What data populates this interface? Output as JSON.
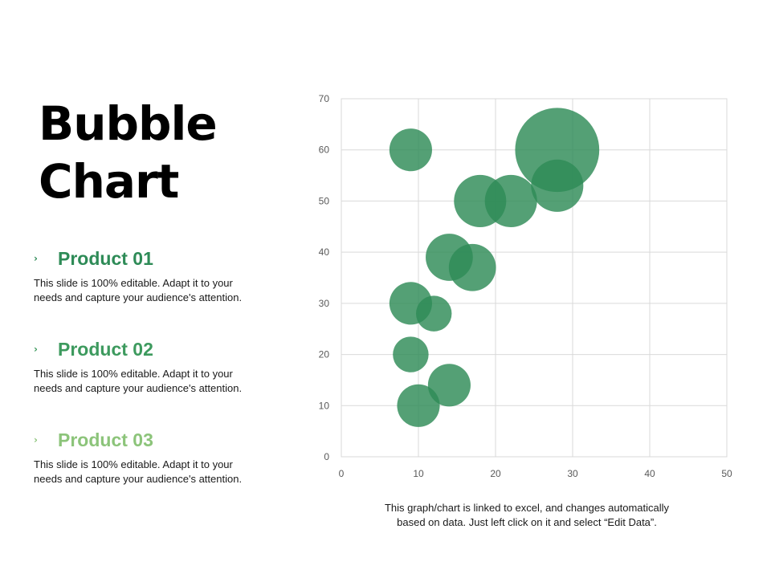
{
  "slide": {
    "title_line1": "Bubble",
    "title_line2": "Chart",
    "footnote_line1": "This graph/chart is linked to excel, and changes automatically",
    "footnote_line2": "based on data. Just left click on it and select “Edit Data”."
  },
  "products": [
    {
      "chevron": "›",
      "name": "Product 01",
      "color": "#2e8b57",
      "desc_line1": "This slide is 100% editable. Adapt it to your",
      "desc_line2": "needs and capture your audience's attention."
    },
    {
      "chevron": "›",
      "name": "Product 02",
      "color": "#3d9a5e",
      "desc_line1": "This slide is 100% editable. Adapt it to your",
      "desc_line2": "needs and capture your audience's attention."
    },
    {
      "chevron": "›",
      "name": "Product 03",
      "color": "#8cc47a",
      "desc_line1": "This slide is 100% editable. Adapt it to your",
      "desc_line2": "needs and capture your audience's attention."
    }
  ],
  "chart_data": {
    "type": "scatter",
    "bubble": true,
    "color": "#2e8b57",
    "xlim": [
      0,
      50
    ],
    "ylim": [
      0,
      70
    ],
    "xticks": [
      0,
      10,
      20,
      30,
      40,
      50
    ],
    "yticks": [
      0,
      10,
      20,
      30,
      40,
      50,
      60,
      70
    ],
    "grid": true,
    "points": [
      {
        "x": 9,
        "y": 60,
        "size": 0.9
      },
      {
        "x": 28,
        "y": 60,
        "size": 3.5
      },
      {
        "x": 28,
        "y": 53,
        "size": 1.35
      },
      {
        "x": 18,
        "y": 50,
        "size": 1.35
      },
      {
        "x": 22,
        "y": 50,
        "size": 1.35
      },
      {
        "x": 14,
        "y": 39,
        "size": 1.1
      },
      {
        "x": 17,
        "y": 37,
        "size": 1.1
      },
      {
        "x": 9,
        "y": 30,
        "size": 0.9
      },
      {
        "x": 12,
        "y": 28,
        "size": 0.63
      },
      {
        "x": 9,
        "y": 20,
        "size": 0.63
      },
      {
        "x": 14,
        "y": 14,
        "size": 0.9
      },
      {
        "x": 10,
        "y": 10,
        "size": 0.9
      }
    ]
  }
}
